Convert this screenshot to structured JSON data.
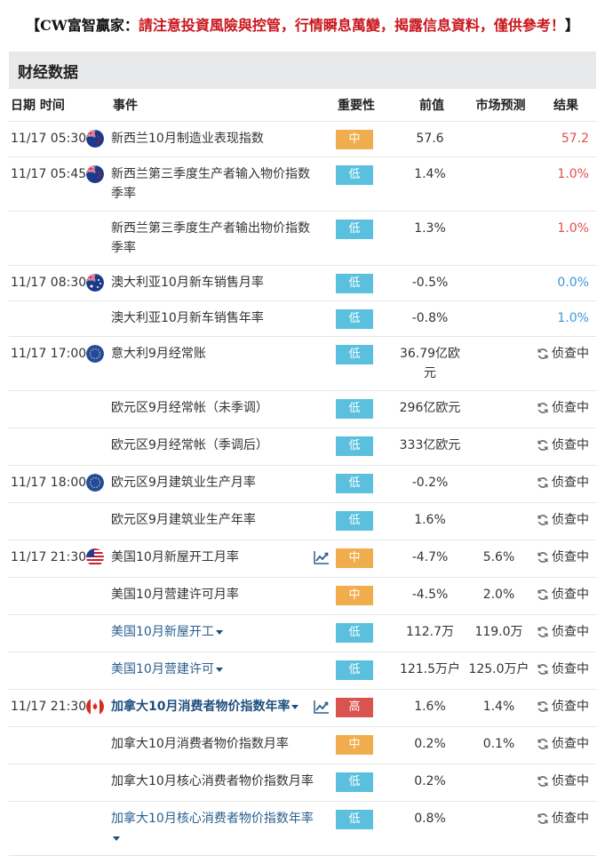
{
  "banner": {
    "lead": "【CW富智贏家：",
    "warning": "請注意投資風險與控管，行情瞬息萬變，揭露信息資料，僅供參考！",
    "close": "】"
  },
  "section": {
    "title": "财经数据"
  },
  "headers": {
    "time": "日期  时间",
    "event": "事件",
    "importance": "重要性",
    "previous": "前值",
    "forecast": "市场预测",
    "result": "结果"
  },
  "rows": [
    {
      "time": "11/17 05:30",
      "country": "nz",
      "event": "新西兰10月制造业表现指数",
      "importance": "中",
      "level": "mid",
      "previous": "57.6",
      "forecast": "",
      "result": "57.2",
      "result_style": "red"
    },
    {
      "time": "11/17 05:45",
      "country": "nz",
      "event": "新西兰第三季度生产者输入物价指数季率",
      "importance": "低",
      "level": "low",
      "previous": "1.4%",
      "forecast": "",
      "result": "1.0%",
      "result_style": "red"
    },
    {
      "time": "",
      "country": "",
      "event": "新西兰第三季度生产者输出物价指数季率",
      "importance": "低",
      "level": "low",
      "previous": "1.3%",
      "forecast": "",
      "result": "1.0%",
      "result_style": "red"
    },
    {
      "time": "11/17 08:30",
      "country": "au",
      "event": "澳大利亚10月新车销售月率",
      "importance": "低",
      "level": "low",
      "previous": "-0.5%",
      "forecast": "",
      "result": "0.0%",
      "result_style": "blue"
    },
    {
      "time": "",
      "country": "",
      "event": "澳大利亚10月新车销售年率",
      "importance": "低",
      "level": "low",
      "previous": "-0.8%",
      "forecast": "",
      "result": "1.0%",
      "result_style": "blue"
    },
    {
      "time": "11/17 17:00",
      "country": "eu",
      "event": "意大利9月经常账",
      "importance": "低",
      "level": "low",
      "previous": "36.79亿欧元",
      "forecast": "",
      "result": "侦查中",
      "result_style": "pending"
    },
    {
      "time": "",
      "country": "",
      "event": "欧元区9月经常帐（未季调）",
      "importance": "低",
      "level": "low",
      "previous": "296亿欧元",
      "forecast": "",
      "result": "侦查中",
      "result_style": "pending"
    },
    {
      "time": "",
      "country": "",
      "event": "欧元区9月经常帐（季调后）",
      "importance": "低",
      "level": "low",
      "previous": "333亿欧元",
      "forecast": "",
      "result": "侦查中",
      "result_style": "pending"
    },
    {
      "time": "11/17 18:00",
      "country": "eu",
      "event": "欧元区9月建筑业生产月率",
      "importance": "低",
      "level": "low",
      "previous": "-0.2%",
      "forecast": "",
      "result": "侦查中",
      "result_style": "pending"
    },
    {
      "time": "",
      "country": "",
      "event": "欧元区9月建筑业生产年率",
      "importance": "低",
      "level": "low",
      "previous": "1.6%",
      "forecast": "",
      "result": "侦查中",
      "result_style": "pending"
    },
    {
      "time": "11/17 21:30",
      "country": "us",
      "event": "美国10月新屋开工月率",
      "trend": true,
      "importance": "中",
      "level": "mid",
      "previous": "-4.7%",
      "forecast": "5.6%",
      "result": "侦查中",
      "result_style": "pending"
    },
    {
      "time": "",
      "country": "",
      "event": "美国10月营建许可月率",
      "importance": "中",
      "level": "mid",
      "previous": "-4.5%",
      "forecast": "2.0%",
      "result": "侦查中",
      "result_style": "pending"
    },
    {
      "time": "",
      "country": "",
      "event": "美国10月新屋开工",
      "event_style": "link",
      "caret": true,
      "importance": "低",
      "level": "low",
      "previous": "112.7万",
      "forecast": "119.0万",
      "result": "侦查中",
      "result_style": "pending"
    },
    {
      "time": "",
      "country": "",
      "event": "美国10月营建许可",
      "event_style": "link",
      "caret": true,
      "importance": "低",
      "level": "low",
      "previous": "121.5万户",
      "forecast": "125.0万户",
      "result": "侦查中",
      "result_style": "pending"
    },
    {
      "time": "11/17 21:30",
      "country": "ca",
      "event": "加拿大10月消费者物价指数年率",
      "event_style": "bold",
      "caret": true,
      "trend": true,
      "importance": "高",
      "level": "high",
      "previous": "1.6%",
      "forecast": "1.4%",
      "result": "侦查中",
      "result_style": "pending"
    },
    {
      "time": "",
      "country": "",
      "event": "加拿大10月消费者物价指数月率",
      "importance": "中",
      "level": "mid",
      "previous": "0.2%",
      "forecast": "0.1%",
      "result": "侦查中",
      "result_style": "pending"
    },
    {
      "time": "",
      "country": "",
      "event": "加拿大10月核心消费者物价指数月率",
      "importance": "低",
      "level": "low",
      "previous": "0.2%",
      "forecast": "",
      "result": "侦查中",
      "result_style": "pending"
    },
    {
      "time": "",
      "country": "",
      "event": "加拿大10月核心消费者物价指数年率",
      "event_style": "link",
      "caret": true,
      "importance": "低",
      "level": "low",
      "previous": "0.8%",
      "forecast": "",
      "result": "侦查中",
      "result_style": "pending"
    }
  ]
}
